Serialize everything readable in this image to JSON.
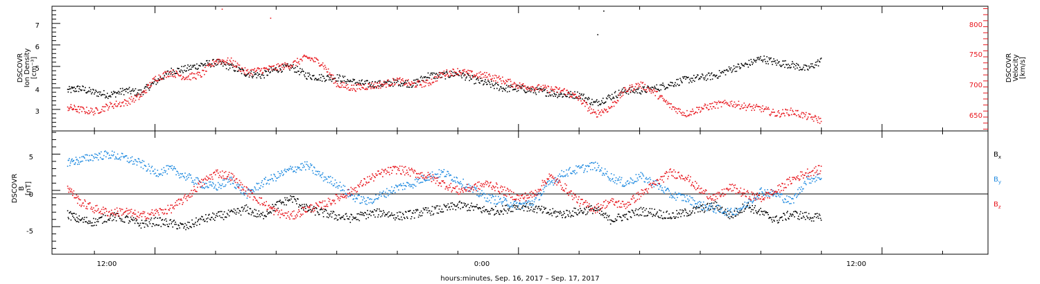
{
  "chart_data": [
    {
      "type": "scatter",
      "panel": "top",
      "ylabel_left": [
        "DSCOVR",
        "Ion Density",
        "[cm⁻³]"
      ],
      "ylabel_right": [
        "DSCOVR",
        "Velocity",
        "[km/s]"
      ],
      "ylim_left": [
        2.0,
        7.8
      ],
      "ylim_right": [
        622,
        829
      ],
      "yticks_left": [
        "3",
        "4",
        "5",
        "6",
        "7"
      ],
      "yticks_right": [
        "650",
        "700",
        "750",
        "800"
      ],
      "x_range_hours": [
        -15.4,
        15.5
      ],
      "grid": false,
      "colors": {
        "density": "#000000",
        "velocity": "#e8141b"
      },
      "series": [
        {
          "axis": "left",
          "color": "#000000",
          "x": [
            -14.9,
            -14.5,
            -14.0,
            -13.5,
            -13.0,
            -12.5,
            -12.0,
            -11.5,
            -11.0,
            -10.5,
            -10.0,
            -9.5,
            -9.0,
            -8.5,
            -8.0,
            -7.5,
            -7.0,
            -6.5,
            -6.0,
            -5.5,
            -5.0,
            -4.5,
            -4.0,
            -3.5,
            -3.0,
            -2.5,
            -2.0,
            -1.5,
            -1.0,
            -0.5,
            0.0,
            0.5,
            1.0,
            1.5,
            2.0,
            2.5,
            3.0,
            3.5,
            4.0,
            4.5,
            5.0,
            5.5,
            6.0,
            6.5,
            7.0,
            7.5,
            8.0,
            8.5,
            9.0,
            9.5,
            10.0
          ],
          "y": [
            3.9,
            4.0,
            3.8,
            3.7,
            3.9,
            3.8,
            4.3,
            4.8,
            4.9,
            5.1,
            5.2,
            5.0,
            4.7,
            4.6,
            4.9,
            5.0,
            4.6,
            4.5,
            4.5,
            4.3,
            4.2,
            4.2,
            4.3,
            4.2,
            4.6,
            4.6,
            4.7,
            4.4,
            4.2,
            4.0,
            4.0,
            3.9,
            3.8,
            3.7,
            3.7,
            3.3,
            3.6,
            3.9,
            3.9,
            4.0,
            4.2,
            4.4,
            4.5,
            4.6,
            4.9,
            5.1,
            5.4,
            5.2,
            5.1,
            4.9,
            5.3
          ]
        },
        {
          "axis": "right",
          "color": "#e8141b",
          "x": [
            -14.9,
            -14.5,
            -14.0,
            -13.5,
            -13.0,
            -12.5,
            -12.0,
            -11.5,
            -11.0,
            -10.5,
            -10.0,
            -9.5,
            -9.0,
            -8.5,
            -8.0,
            -7.5,
            -7.0,
            -6.5,
            -6.0,
            -5.5,
            -5.0,
            -4.5,
            -4.0,
            -3.5,
            -3.0,
            -2.5,
            -2.0,
            -1.5,
            -1.0,
            -0.5,
            0.0,
            0.5,
            1.0,
            1.5,
            2.0,
            2.5,
            3.0,
            3.5,
            4.0,
            4.5,
            5.0,
            5.5,
            6.0,
            6.5,
            7.0,
            7.5,
            8.0,
            8.5,
            9.0,
            9.5,
            10.0
          ],
          "y": [
            662,
            658,
            655,
            665,
            670,
            680,
            710,
            720,
            712,
            716,
            740,
            738,
            720,
            724,
            728,
            733,
            745,
            735,
            700,
            694,
            697,
            700,
            706,
            700,
            702,
            718,
            722,
            716,
            714,
            706,
            698,
            695,
            692,
            689,
            676,
            650,
            661,
            690,
            700,
            686,
            664,
            651,
            660,
            666,
            669,
            663,
            660,
            651,
            655,
            647,
            640
          ]
        }
      ],
      "spikes": [
        {
          "axis": "right",
          "x": -9.8,
          "y": 825
        },
        {
          "axis": "right",
          "x": -8.2,
          "y": 810
        },
        {
          "axis": "left",
          "x": 2.8,
          "y": 7.6
        },
        {
          "axis": "left",
          "x": 2.6,
          "y": 6.5
        }
      ]
    },
    {
      "type": "scatter",
      "panel": "bottom",
      "ylabel_left": [
        "DSCOVR",
        "B",
        "[nT]"
      ],
      "ylim": [
        -8.8,
        8.2
      ],
      "yticks": [
        "-5",
        "0",
        "5"
      ],
      "zero_line": true,
      "x_range_hours": [
        -15.4,
        15.5
      ],
      "legend_placement": "right",
      "legend": [
        {
          "label": "B",
          "sub": "x",
          "color": "#000000"
        },
        {
          "label": "B",
          "sub": "y",
          "color": "#1f8ae0"
        },
        {
          "label": "B",
          "sub": "z",
          "color": "#e8141b"
        }
      ],
      "series": [
        {
          "color": "#000000",
          "x": [
            -14.9,
            -14.5,
            -14.0,
            -13.5,
            -13.0,
            -12.5,
            -12.0,
            -11.5,
            -11.0,
            -10.5,
            -10.0,
            -9.5,
            -9.0,
            -8.5,
            -8.0,
            -7.5,
            -7.0,
            -6.5,
            -6.0,
            -5.5,
            -5.0,
            -4.5,
            -4.0,
            -3.5,
            -3.0,
            -2.5,
            -2.0,
            -1.5,
            -1.0,
            -0.5,
            0.0,
            0.5,
            1.0,
            1.5,
            2.0,
            2.5,
            3.0,
            3.5,
            4.0,
            4.5,
            5.0,
            5.5,
            6.0,
            6.5,
            7.0,
            7.5,
            8.0,
            8.5,
            9.0,
            9.5,
            10.0
          ],
          "y": [
            -3.2,
            -4.0,
            -4.3,
            -3.5,
            -3.8,
            -4.6,
            -4.2,
            -4.5,
            -5.0,
            -4.0,
            -3.5,
            -3.2,
            -2.5,
            -3.5,
            -2.0,
            -1.0,
            -2.5,
            -3.0,
            -3.5,
            -3.8,
            -3.2,
            -3.0,
            -3.5,
            -3.2,
            -2.8,
            -2.5,
            -2.0,
            -2.3,
            -2.8,
            -2.6,
            -2.0,
            -2.4,
            -3.0,
            -3.2,
            -2.8,
            -2.5,
            -4.0,
            -3.5,
            -2.8,
            -3.0,
            -3.5,
            -3.0,
            -2.5,
            -2.0,
            -3.5,
            -2.0,
            -3.0,
            -4.0,
            -3.2,
            -3.5,
            -3.8
          ]
        },
        {
          "color": "#1f8ae0",
          "x": [
            -14.9,
            -14.5,
            -14.0,
            -13.5,
            -13.0,
            -12.5,
            -12.0,
            -11.5,
            -11.0,
            -10.5,
            -10.0,
            -9.5,
            -9.0,
            -8.5,
            -8.0,
            -7.5,
            -7.0,
            -6.5,
            -6.0,
            -5.5,
            -5.0,
            -4.5,
            -4.0,
            -3.5,
            -3.0,
            -2.5,
            -2.0,
            -1.5,
            -1.0,
            -0.5,
            0.0,
            0.5,
            1.0,
            1.5,
            2.0,
            2.5,
            3.0,
            3.5,
            4.0,
            4.5,
            5.0,
            5.5,
            6.0,
            6.5,
            7.0,
            7.5,
            8.0,
            8.5,
            9.0,
            9.5,
            10.0
          ],
          "y": [
            4.0,
            4.2,
            4.8,
            5.0,
            4.5,
            3.8,
            2.5,
            3.0,
            2.0,
            1.0,
            0.5,
            1.5,
            -0.5,
            1.0,
            2.0,
            3.0,
            3.5,
            2.0,
            1.0,
            -0.8,
            -1.5,
            -0.5,
            0.5,
            1.0,
            2.0,
            2.5,
            1.5,
            0.0,
            -1.0,
            -1.5,
            -2.0,
            -1.5,
            1.0,
            2.5,
            3.0,
            3.5,
            2.0,
            1.0,
            2.0,
            1.0,
            -0.5,
            -1.0,
            -2.0,
            -2.5,
            -3.0,
            -2.0,
            0.0,
            -0.5,
            -1.5,
            1.5,
            2.0
          ]
        },
        {
          "color": "#e8141b",
          "x": [
            -14.9,
            -14.5,
            -14.0,
            -13.5,
            -13.0,
            -12.5,
            -12.0,
            -11.5,
            -11.0,
            -10.5,
            -10.0,
            -9.5,
            -9.0,
            -8.5,
            -8.0,
            -7.5,
            -7.0,
            -6.5,
            -6.0,
            -5.5,
            -5.0,
            -4.5,
            -4.0,
            -3.5,
            -3.0,
            -2.5,
            -2.0,
            -1.5,
            -1.0,
            -0.5,
            0.0,
            0.5,
            1.0,
            1.5,
            2.0,
            2.5,
            3.0,
            3.5,
            4.0,
            4.5,
            5.0,
            5.5,
            6.0,
            6.5,
            7.0,
            7.5,
            8.0,
            8.5,
            9.0,
            9.5,
            10.0
          ],
          "y": [
            0.5,
            -1.5,
            -2.5,
            -3.0,
            -2.8,
            -3.5,
            -3.0,
            -2.5,
            -1.0,
            1.0,
            2.5,
            2.0,
            0.0,
            -1.5,
            -3.0,
            -3.5,
            -2.5,
            -2.0,
            -1.0,
            0.0,
            1.5,
            2.5,
            3.0,
            2.5,
            2.0,
            1.0,
            0.0,
            0.5,
            1.0,
            0.0,
            -1.0,
            -0.5,
            2.0,
            0.5,
            -1.5,
            -2.5,
            -1.5,
            -2.0,
            -0.5,
            1.0,
            2.5,
            2.0,
            0.0,
            -1.0,
            0.5,
            -0.5,
            -1.0,
            0.0,
            1.5,
            2.5,
            3.0
          ]
        }
      ]
    }
  ],
  "x_axis": {
    "tick_labels": [
      {
        "hour": -12,
        "label": "12:00"
      },
      {
        "hour": 0,
        "label": "0:00"
      },
      {
        "hour": 12,
        "label": "12:00"
      }
    ],
    "minor_tick_step_hours": 2,
    "title": "hours:minutes, Sep. 16, 2017 – Sep. 17, 2017"
  }
}
